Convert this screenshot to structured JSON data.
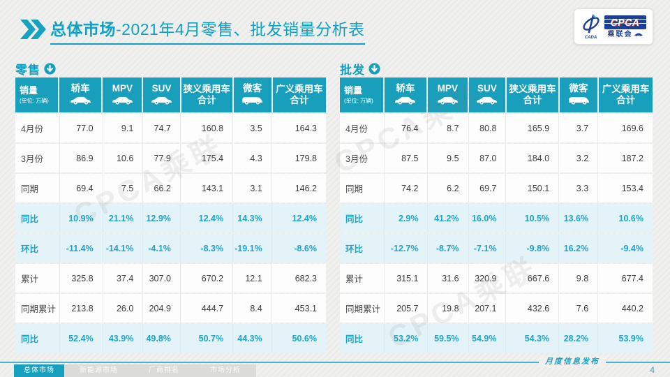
{
  "title": {
    "highlight": "总体市场",
    "rest": "-2021年4月零售、批发销量分析表"
  },
  "logo": {
    "wordmark": "CPCA",
    "cn": "乘联会",
    "sub": "CADA"
  },
  "watermark_text": "CPCA乘联",
  "colors": {
    "accent_teal": "#189FBC",
    "title_teal": "#0FA0C6",
    "pct_row_bg": "#E4F3F8",
    "pct_text": "#1FA4C7",
    "logo_blue": "#1C3F97",
    "page_bg": "#F0F0EE",
    "tab_inactive_bg": "#DBDBD9"
  },
  "tables": [
    {
      "id": "retail",
      "section_label": "零售",
      "unit_title": "销量",
      "unit_note": "(单位: 万辆)",
      "columns": [
        {
          "line1": "轿车",
          "line2": "",
          "icon": "sedan-icon"
        },
        {
          "line1": "MPV",
          "line2": "",
          "icon": "mpv-icon"
        },
        {
          "line1": "SUV",
          "line2": "",
          "icon": "suv-icon"
        },
        {
          "line1": "狭义乘用车",
          "line2": "合计",
          "icon": ""
        },
        {
          "line1": "微客",
          "line2": "",
          "icon": "van-icon"
        },
        {
          "line1": "广义乘用车",
          "line2": "合计",
          "icon": ""
        }
      ],
      "rows": [
        {
          "label": "4月份",
          "type": "value",
          "values": [
            "77.0",
            "9.1",
            "74.7",
            "160.8",
            "3.5",
            "164.3"
          ]
        },
        {
          "label": "3月份",
          "type": "value",
          "values": [
            "86.9",
            "10.6",
            "77.9",
            "175.4",
            "4.3",
            "179.8"
          ]
        },
        {
          "label": "同期",
          "type": "value",
          "values": [
            "69.4",
            "7.5",
            "66.2",
            "143.1",
            "3.1",
            "146.2"
          ]
        },
        {
          "label": "同比",
          "type": "pct",
          "values": [
            "10.9%",
            "21.1%",
            "12.9%",
            "12.4%",
            "14.3%",
            "12.4%"
          ]
        },
        {
          "label": "环比",
          "type": "pct",
          "values": [
            "-11.4%",
            "-14.1%",
            "-4.1%",
            "-8.3%",
            "-19.1%",
            "-8.6%"
          ]
        },
        {
          "label": "累计",
          "type": "value",
          "values": [
            "325.8",
            "37.4",
            "307.0",
            "670.2",
            "12.1",
            "682.3"
          ]
        },
        {
          "label": "同期累计",
          "type": "value",
          "values": [
            "213.8",
            "26.0",
            "204.9",
            "444.7",
            "8.4",
            "453.1"
          ]
        },
        {
          "label": "同比",
          "type": "pct",
          "values": [
            "52.4%",
            "43.9%",
            "49.8%",
            "50.7%",
            "44.3%",
            "50.6%"
          ]
        }
      ]
    },
    {
      "id": "wholesale",
      "section_label": "批发",
      "unit_title": "销量",
      "unit_note": "(单位: 万辆)",
      "columns": [
        {
          "line1": "轿车",
          "line2": "",
          "icon": "sedan-icon"
        },
        {
          "line1": "MPV",
          "line2": "",
          "icon": "mpv-icon"
        },
        {
          "line1": "SUV",
          "line2": "",
          "icon": "suv-icon"
        },
        {
          "line1": "狭义乘用车",
          "line2": "合计",
          "icon": ""
        },
        {
          "line1": "微客",
          "line2": "",
          "icon": "van-icon"
        },
        {
          "line1": "广义乘用车",
          "line2": "合计",
          "icon": ""
        }
      ],
      "rows": [
        {
          "label": "4月份",
          "type": "value",
          "values": [
            "76.4",
            "8.7",
            "80.8",
            "165.9",
            "3.7",
            "169.6"
          ]
        },
        {
          "label": "3月份",
          "type": "value",
          "values": [
            "87.5",
            "9.5",
            "87.0",
            "184.0",
            "3.2",
            "187.2"
          ]
        },
        {
          "label": "同期",
          "type": "value",
          "values": [
            "74.2",
            "6.2",
            "69.7",
            "150.1",
            "3.3",
            "153.4"
          ]
        },
        {
          "label": "同比",
          "type": "pct",
          "values": [
            "2.9%",
            "41.2%",
            "16.0%",
            "10.5%",
            "13.6%",
            "10.6%"
          ]
        },
        {
          "label": "环比",
          "type": "pct",
          "values": [
            "-12.7%",
            "-8.7%",
            "-7.1%",
            "-9.8%",
            "16.2%",
            "-9.4%"
          ]
        },
        {
          "label": "累计",
          "type": "value",
          "values": [
            "315.1",
            "31.6",
            "320.9",
            "667.6",
            "9.8",
            "677.4"
          ]
        },
        {
          "label": "同期累计",
          "type": "value",
          "values": [
            "205.7",
            "19.8",
            "207.1",
            "432.6",
            "7.6",
            "440.2"
          ]
        },
        {
          "label": "同比",
          "type": "pct",
          "values": [
            "53.2%",
            "59.5%",
            "54.9%",
            "54.3%",
            "28.2%",
            "53.9%"
          ]
        }
      ]
    }
  ],
  "footer": {
    "tabs": [
      {
        "label": "总体市场",
        "active": true
      },
      {
        "label": "新能源市场",
        "active": false
      },
      {
        "label": "厂商排名",
        "active": false
      },
      {
        "label": "市场分析",
        "active": false
      }
    ],
    "publish_label": "月度信息发布",
    "page_number": "4"
  }
}
